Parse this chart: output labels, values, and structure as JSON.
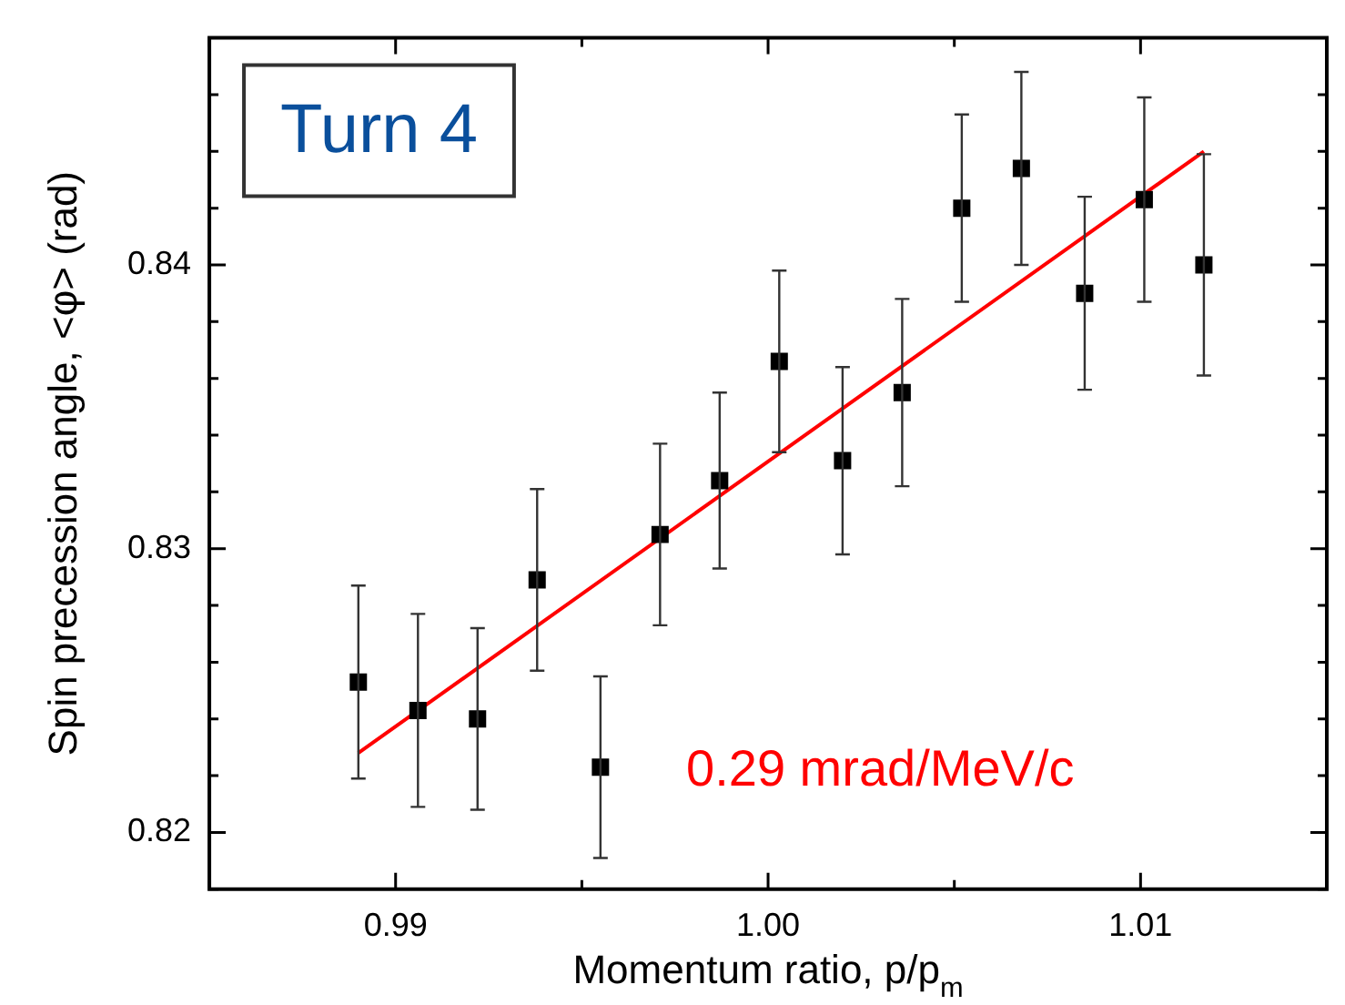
{
  "chart_data": {
    "type": "scatter",
    "xlabel": "Momentum ratio, p/p$_{m}$",
    "ylabel": "Spin precession angle, <φ> (rad)",
    "xlim": [
      0.985,
      1.015
    ],
    "ylim": [
      0.818,
      0.848
    ],
    "xticks": [
      {
        "value": 0.985,
        "label": null
      },
      0.99,
      {
        "value": 0.995,
        "label": null
      },
      {
        "value": 1,
        "label": "1.00"
      },
      {
        "value": 1.005,
        "label": null
      },
      1.01,
      {
        "value": 1.015,
        "label": null
      }
    ],
    "yticks": [
      {
        "value": 0.818,
        "label": null
      },
      0.82,
      {
        "value": 0.822,
        "label": null
      },
      {
        "value": 0.824,
        "label": null
      },
      {
        "value": 0.826,
        "label": null
      },
      {
        "value": 0.828,
        "label": null
      },
      0.83,
      {
        "value": 0.832,
        "label": null
      },
      {
        "value": 0.834,
        "label": null
      },
      {
        "value": 0.836,
        "label": null
      },
      {
        "value": 0.838,
        "label": null
      },
      0.84,
      {
        "value": 0.842,
        "label": null
      },
      {
        "value": 0.844,
        "label": null
      },
      {
        "value": 0.846,
        "label": null
      },
      {
        "value": 0.848,
        "label": null
      }
    ],
    "marker": "square",
    "grid": false,
    "legend": false,
    "annotations": [
      "Turn 4",
      "0.29 mrad/MeV/c"
    ],
    "series": [
      {
        "color": "#000000",
        "x": [
          0.989,
          0.9906,
          0.9922,
          0.9938,
          0.9955,
          0.9971,
          0.9987,
          1.0003,
          1.002,
          1.0036,
          1.0052,
          1.0068,
          1.0085,
          1.0101,
          1.0117
        ],
        "values": [
          0.8253,
          0.8243,
          0.824,
          0.8289,
          0.8223,
          0.8305,
          0.8324,
          0.8366,
          0.8331,
          0.8355,
          0.842,
          0.8434,
          0.839,
          0.8423,
          0.84
        ],
        "errors": [
          0.0034,
          0.0034,
          0.0032,
          0.0032,
          0.0032,
          0.0032,
          0.0031,
          0.0032,
          0.0033,
          0.0033,
          0.0033,
          0.0034,
          0.0034,
          0.0036,
          0.0039
        ]
      },
      {
        "type": "line",
        "color": "#ff0000",
        "marker": "none",
        "x": [
          0.989,
          1.0117
        ],
        "values": [
          0.8228,
          0.844
        ]
      }
    ]
  }
}
